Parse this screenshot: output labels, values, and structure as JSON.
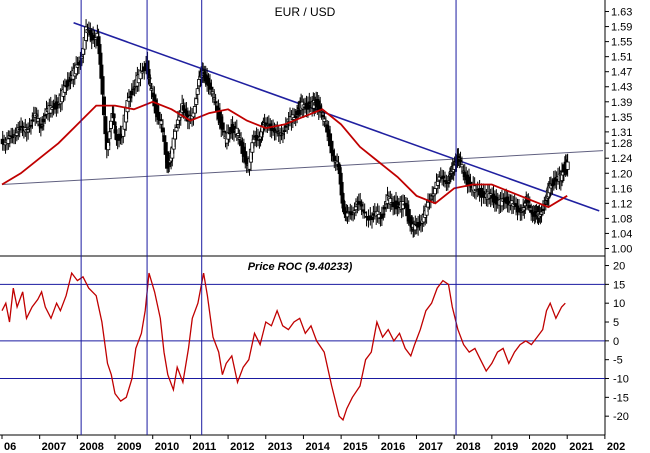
{
  "chart_data": [
    {
      "type": "candlestick",
      "title": "EUR / USD",
      "y_axis_position": "right",
      "ylim": [
        0.98,
        1.65
      ],
      "y_ticks": [
        "1.63",
        "1.59",
        "1.55",
        "1.51",
        "1.47",
        "1.43",
        "1.39",
        "1.35",
        "1.31",
        "1.28",
        "1.24",
        "1.20",
        "1.16",
        "1.12",
        "1.08",
        "1.04",
        "1.00"
      ],
      "x_ticks": [
        "06",
        "2007",
        "2008",
        "2009",
        "2010",
        "2011",
        "2012",
        "2013",
        "2014",
        "2015",
        "2016",
        "2017",
        "2018",
        "2019",
        "2020",
        "2021",
        "202"
      ],
      "price_series": [
        [
          2006.0,
          1.29
        ],
        [
          2006.15,
          1.28
        ],
        [
          2006.3,
          1.3
        ],
        [
          2006.45,
          1.32
        ],
        [
          2006.6,
          1.31
        ],
        [
          2006.75,
          1.33
        ],
        [
          2006.9,
          1.35
        ],
        [
          2007.05,
          1.33
        ],
        [
          2007.2,
          1.36
        ],
        [
          2007.35,
          1.38
        ],
        [
          2007.5,
          1.38
        ],
        [
          2007.65,
          1.42
        ],
        [
          2007.8,
          1.45
        ],
        [
          2007.95,
          1.47
        ],
        [
          2008.1,
          1.5
        ],
        [
          2008.25,
          1.58
        ],
        [
          2008.4,
          1.56
        ],
        [
          2008.55,
          1.57
        ],
        [
          2008.65,
          1.45
        ],
        [
          2008.8,
          1.27
        ],
        [
          2008.95,
          1.35
        ],
        [
          2009.05,
          1.3
        ],
        [
          2009.2,
          1.29
        ],
        [
          2009.35,
          1.4
        ],
        [
          2009.5,
          1.42
        ],
        [
          2009.65,
          1.46
        ],
        [
          2009.85,
          1.49
        ],
        [
          2009.95,
          1.43
        ],
        [
          2010.1,
          1.37
        ],
        [
          2010.25,
          1.33
        ],
        [
          2010.4,
          1.22
        ],
        [
          2010.5,
          1.25
        ],
        [
          2010.65,
          1.32
        ],
        [
          2010.8,
          1.39
        ],
        [
          2010.95,
          1.33
        ],
        [
          2011.1,
          1.37
        ],
        [
          2011.25,
          1.44
        ],
        [
          2011.35,
          1.48
        ],
        [
          2011.5,
          1.43
        ],
        [
          2011.65,
          1.4
        ],
        [
          2011.8,
          1.34
        ],
        [
          2011.95,
          1.29
        ],
        [
          2012.1,
          1.32
        ],
        [
          2012.25,
          1.31
        ],
        [
          2012.4,
          1.26
        ],
        [
          2012.55,
          1.22
        ],
        [
          2012.7,
          1.29
        ],
        [
          2012.85,
          1.3
        ],
        [
          2012.95,
          1.32
        ],
        [
          2013.1,
          1.34
        ],
        [
          2013.25,
          1.3
        ],
        [
          2013.4,
          1.31
        ],
        [
          2013.55,
          1.32
        ],
        [
          2013.7,
          1.35
        ],
        [
          2013.85,
          1.36
        ],
        [
          2013.95,
          1.38
        ],
        [
          2014.1,
          1.38
        ],
        [
          2014.25,
          1.38
        ],
        [
          2014.35,
          1.39
        ],
        [
          2014.5,
          1.36
        ],
        [
          2014.65,
          1.31
        ],
        [
          2014.8,
          1.25
        ],
        [
          2014.95,
          1.21
        ],
        [
          2015.05,
          1.13
        ],
        [
          2015.15,
          1.08
        ],
        [
          2015.3,
          1.1
        ],
        [
          2015.45,
          1.12
        ],
        [
          2015.6,
          1.1
        ],
        [
          2015.8,
          1.08
        ],
        [
          2015.95,
          1.09
        ],
        [
          2016.1,
          1.09
        ],
        [
          2016.25,
          1.13
        ],
        [
          2016.4,
          1.12
        ],
        [
          2016.55,
          1.11
        ],
        [
          2016.7,
          1.12
        ],
        [
          2016.85,
          1.07
        ],
        [
          2016.95,
          1.05
        ],
        [
          2017.1,
          1.07
        ],
        [
          2017.25,
          1.09
        ],
        [
          2017.4,
          1.14
        ],
        [
          2017.55,
          1.17
        ],
        [
          2017.7,
          1.19
        ],
        [
          2017.85,
          1.18
        ],
        [
          2017.95,
          1.2
        ],
        [
          2018.05,
          1.24
        ],
        [
          2018.15,
          1.23
        ],
        [
          2018.3,
          1.2
        ],
        [
          2018.45,
          1.16
        ],
        [
          2018.6,
          1.16
        ],
        [
          2018.8,
          1.14
        ],
        [
          2018.95,
          1.14
        ],
        [
          2019.1,
          1.13
        ],
        [
          2019.25,
          1.12
        ],
        [
          2019.4,
          1.13
        ],
        [
          2019.55,
          1.12
        ],
        [
          2019.7,
          1.1
        ],
        [
          2019.85,
          1.11
        ],
        [
          2019.95,
          1.12
        ],
        [
          2020.1,
          1.1
        ],
        [
          2020.2,
          1.08
        ],
        [
          2020.3,
          1.1
        ],
        [
          2020.45,
          1.12
        ],
        [
          2020.55,
          1.17
        ],
        [
          2020.7,
          1.18
        ],
        [
          2020.85,
          1.19
        ],
        [
          2020.95,
          1.22
        ],
        [
          2021.02,
          1.22
        ]
      ],
      "moving_average": [
        [
          2006.0,
          1.17
        ],
        [
          2006.5,
          1.2
        ],
        [
          2007.0,
          1.24
        ],
        [
          2007.5,
          1.28
        ],
        [
          2008.0,
          1.33
        ],
        [
          2008.5,
          1.38
        ],
        [
          2009.0,
          1.38
        ],
        [
          2009.5,
          1.37
        ],
        [
          2010.0,
          1.39
        ],
        [
          2010.5,
          1.37
        ],
        [
          2011.0,
          1.34
        ],
        [
          2011.5,
          1.36
        ],
        [
          2012.0,
          1.37
        ],
        [
          2012.5,
          1.34
        ],
        [
          2013.0,
          1.32
        ],
        [
          2013.5,
          1.33
        ],
        [
          2014.0,
          1.35
        ],
        [
          2014.5,
          1.37
        ],
        [
          2015.0,
          1.33
        ],
        [
          2015.5,
          1.27
        ],
        [
          2016.0,
          1.23
        ],
        [
          2016.5,
          1.19
        ],
        [
          2017.0,
          1.14
        ],
        [
          2017.5,
          1.12
        ],
        [
          2018.0,
          1.16
        ],
        [
          2018.5,
          1.17
        ],
        [
          2019.0,
          1.17
        ],
        [
          2019.5,
          1.15
        ],
        [
          2020.0,
          1.13
        ],
        [
          2020.5,
          1.11
        ],
        [
          2021.0,
          1.14
        ]
      ],
      "trendlines": [
        {
          "color": "#2020a0",
          "points": [
            [
              2007.9,
              1.6
            ],
            [
              2021.85,
              1.1
            ]
          ]
        },
        {
          "color": "#606080",
          "points": [
            [
              2006.0,
              1.17
            ],
            [
              2021.95,
              1.26
            ]
          ]
        }
      ],
      "colors": {
        "price": "#000000",
        "moving_average": "#c00000"
      }
    },
    {
      "type": "line",
      "title": "Price ROC (9.40233)",
      "y_axis_position": "right",
      "ylim": [
        -25,
        22
      ],
      "y_ticks": [
        "20",
        "15",
        "10",
        "5",
        "0",
        "-5",
        "-10",
        "-15",
        "-20"
      ],
      "horizontal_lines": [
        15,
        0,
        -10
      ],
      "series": [
        {
          "color": "#c00000",
          "values": [
            [
              2006.0,
              8
            ],
            [
              2006.1,
              10
            ],
            [
              2006.2,
              5
            ],
            [
              2006.3,
              14
            ],
            [
              2006.4,
              9
            ],
            [
              2006.55,
              13
            ],
            [
              2006.65,
              6
            ],
            [
              2006.8,
              9
            ],
            [
              2006.95,
              11
            ],
            [
              2007.05,
              13
            ],
            [
              2007.15,
              9
            ],
            [
              2007.3,
              6
            ],
            [
              2007.45,
              10
            ],
            [
              2007.55,
              8
            ],
            [
              2007.7,
              12
            ],
            [
              2007.85,
              18
            ],
            [
              2008.0,
              16
            ],
            [
              2008.15,
              17
            ],
            [
              2008.3,
              14
            ],
            [
              2008.5,
              12
            ],
            [
              2008.65,
              5
            ],
            [
              2008.8,
              -6
            ],
            [
              2008.9,
              -9
            ],
            [
              2009.0,
              -14
            ],
            [
              2009.15,
              -16
            ],
            [
              2009.3,
              -15
            ],
            [
              2009.45,
              -10
            ],
            [
              2009.55,
              -2
            ],
            [
              2009.7,
              2
            ],
            [
              2009.8,
              8
            ],
            [
              2009.9,
              18
            ],
            [
              2010.05,
              13
            ],
            [
              2010.2,
              6
            ],
            [
              2010.3,
              -3
            ],
            [
              2010.4,
              -9
            ],
            [
              2010.55,
              -13
            ],
            [
              2010.65,
              -7
            ],
            [
              2010.8,
              -11
            ],
            [
              2010.95,
              -2
            ],
            [
              2011.05,
              6
            ],
            [
              2011.2,
              10
            ],
            [
              2011.35,
              18
            ],
            [
              2011.45,
              12
            ],
            [
              2011.6,
              1
            ],
            [
              2011.75,
              -3
            ],
            [
              2011.85,
              -9
            ],
            [
              2011.95,
              -6
            ],
            [
              2012.1,
              -4
            ],
            [
              2012.25,
              -11
            ],
            [
              2012.4,
              -7
            ],
            [
              2012.55,
              -5
            ],
            [
              2012.7,
              2
            ],
            [
              2012.85,
              -1
            ],
            [
              2013.0,
              5
            ],
            [
              2013.15,
              4
            ],
            [
              2013.3,
              8
            ],
            [
              2013.45,
              4
            ],
            [
              2013.6,
              3
            ],
            [
              2013.75,
              5
            ],
            [
              2013.9,
              6
            ],
            [
              2014.05,
              2
            ],
            [
              2014.2,
              4
            ],
            [
              2014.35,
              0
            ],
            [
              2014.55,
              -3
            ],
            [
              2014.75,
              -12
            ],
            [
              2014.95,
              -20
            ],
            [
              2015.05,
              -21
            ],
            [
              2015.15,
              -18
            ],
            [
              2015.3,
              -15
            ],
            [
              2015.5,
              -12
            ],
            [
              2015.65,
              -5
            ],
            [
              2015.8,
              -3
            ],
            [
              2015.95,
              5
            ],
            [
              2016.1,
              1
            ],
            [
              2016.25,
              3
            ],
            [
              2016.4,
              0
            ],
            [
              2016.55,
              2
            ],
            [
              2016.7,
              -2
            ],
            [
              2016.85,
              -4
            ],
            [
              2016.95,
              -1
            ],
            [
              2017.1,
              3
            ],
            [
              2017.25,
              8
            ],
            [
              2017.4,
              10
            ],
            [
              2017.55,
              14
            ],
            [
              2017.7,
              16
            ],
            [
              2017.85,
              15
            ],
            [
              2017.95,
              9
            ],
            [
              2018.1,
              3
            ],
            [
              2018.25,
              -1
            ],
            [
              2018.4,
              -3
            ],
            [
              2018.55,
              -2
            ],
            [
              2018.7,
              -5
            ],
            [
              2018.85,
              -8
            ],
            [
              2019.0,
              -6
            ],
            [
              2019.15,
              -3
            ],
            [
              2019.3,
              -2
            ],
            [
              2019.45,
              -6
            ],
            [
              2019.6,
              -3
            ],
            [
              2019.75,
              -1
            ],
            [
              2019.9,
              0
            ],
            [
              2020.05,
              -1
            ],
            [
              2020.2,
              1
            ],
            [
              2020.35,
              3
            ],
            [
              2020.45,
              8
            ],
            [
              2020.55,
              10
            ],
            [
              2020.7,
              6
            ],
            [
              2020.85,
              9
            ],
            [
              2020.95,
              10
            ]
          ]
        }
      ]
    }
  ],
  "vertical_markers": [
    2008.1,
    2009.85,
    2011.3,
    2018.05
  ],
  "colors": {
    "marker_line": "#1a1aa0",
    "axis": "#000000"
  }
}
